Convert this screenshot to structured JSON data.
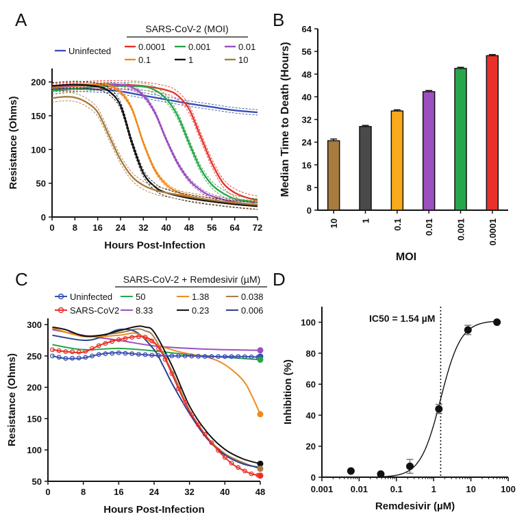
{
  "figure": {
    "panels": {
      "a": "A",
      "b": "B",
      "c": "C",
      "d": "D"
    }
  },
  "chart_data": [
    {
      "id": "A",
      "type": "line",
      "xlabel": "Hours Post-Infection",
      "ylabel": "Resistance (Ohms)",
      "xlim": [
        0,
        72
      ],
      "ylim": [
        0,
        220
      ],
      "xticks": [
        0,
        8,
        16,
        24,
        32,
        40,
        48,
        56,
        64,
        72
      ],
      "yticks": [
        0,
        50,
        100,
        150,
        200
      ],
      "legend_title": "SARS-CoV-2 (MOI)",
      "series": [
        {
          "name": "Uninfected",
          "color": "#3a4fb0",
          "x": [
            0,
            8,
            16,
            24,
            32,
            40,
            48,
            56,
            64,
            72
          ],
          "y": [
            190,
            190,
            189,
            186,
            180,
            174,
            168,
            163,
            158,
            155
          ],
          "band": 4
        },
        {
          "name": "0.0001",
          "color": "#e8312a",
          "x": [
            0,
            8,
            16,
            24,
            32,
            40,
            44,
            48,
            52,
            56,
            60,
            64,
            68,
            72
          ],
          "y": [
            192,
            194,
            196,
            196,
            194,
            188,
            180,
            160,
            120,
            80,
            50,
            36,
            29,
            25
          ],
          "band": 6
        },
        {
          "name": "0.001",
          "color": "#27a64a",
          "x": [
            0,
            8,
            16,
            24,
            32,
            36,
            40,
            44,
            48,
            52,
            56,
            60,
            64,
            68,
            72
          ],
          "y": [
            187,
            190,
            193,
            194,
            193,
            188,
            175,
            150,
            110,
            72,
            48,
            35,
            27,
            24,
            22
          ],
          "band": 5
        },
        {
          "name": "0.01",
          "color": "#9b4fc0",
          "x": [
            0,
            8,
            16,
            24,
            28,
            32,
            36,
            40,
            44,
            48,
            52,
            56,
            64,
            72
          ],
          "y": [
            192,
            195,
            197,
            196,
            192,
            180,
            155,
            115,
            80,
            55,
            40,
            31,
            22,
            18
          ],
          "band": 3
        },
        {
          "name": "0.1",
          "color": "#f08a1c",
          "x": [
            0,
            8,
            16,
            20,
            24,
            28,
            32,
            36,
            40,
            44,
            48,
            56,
            64,
            72
          ],
          "y": [
            193,
            196,
            197,
            195,
            185,
            160,
            110,
            70,
            48,
            37,
            31,
            25,
            21,
            18
          ],
          "band": 3
        },
        {
          "name": "1",
          "color": "#111111",
          "x": [
            0,
            8,
            16,
            20,
            24,
            28,
            32,
            36,
            40,
            48,
            56,
            64,
            72
          ],
          "y": [
            194,
            196,
            193,
            186,
            165,
            110,
            65,
            45,
            36,
            28,
            23,
            19,
            16
          ],
          "band": 5
        },
        {
          "name": "10",
          "color": "#a87b3f",
          "x": [
            0,
            4,
            8,
            12,
            16,
            20,
            24,
            28,
            32,
            36,
            40,
            48,
            56,
            64,
            72
          ],
          "y": [
            176,
            178,
            177,
            170,
            155,
            120,
            85,
            60,
            47,
            40,
            36,
            30,
            25,
            21,
            18
          ],
          "band": 6
        }
      ]
    },
    {
      "id": "B",
      "type": "bar",
      "xlabel": "MOI",
      "ylabel": "Median Time to Death (Hours)",
      "ylim": [
        0,
        64
      ],
      "yticks": [
        0,
        8,
        16,
        24,
        32,
        40,
        48,
        56,
        64
      ],
      "categories": [
        "10",
        "1",
        "0.1",
        "0.01",
        "0.001",
        "0.0001"
      ],
      "values": [
        24.5,
        29.5,
        35.0,
        41.8,
        50.0,
        54.5
      ],
      "errors": [
        0.6,
        0.4,
        0.4,
        0.4,
        0.4,
        0.4
      ],
      "colors": [
        "#a87b3f",
        "#4a4a4a",
        "#f8a91c",
        "#9b4fc0",
        "#27a64a",
        "#e8312a"
      ]
    },
    {
      "id": "C",
      "type": "line",
      "xlabel": "Hours Post-Infection",
      "ylabel": "Resistance (Ohms)",
      "xlim": [
        0,
        48
      ],
      "ylim": [
        50,
        310
      ],
      "xticks": [
        0,
        8,
        16,
        24,
        32,
        40,
        48
      ],
      "yticks": [
        50,
        100,
        150,
        200,
        250,
        300
      ],
      "legend_title": "SARS-CoV-2 + Remdesivir (µM)",
      "series": [
        {
          "name": "Uninfected",
          "color": "#3a4fb0",
          "markers": "circle",
          "x": [
            1,
            4,
            8,
            12,
            16,
            20,
            24,
            28,
            32,
            36,
            40,
            44,
            48
          ],
          "y": [
            250,
            246,
            247,
            253,
            255,
            253,
            251,
            250,
            250,
            249,
            249,
            249,
            248
          ]
        },
        {
          "name": "SARS-CoV2",
          "color": "#e8312a",
          "markers": "circle",
          "x": [
            1,
            4,
            8,
            12,
            16,
            20,
            22,
            24,
            26,
            28,
            30,
            32,
            34,
            36,
            38,
            40,
            42,
            44,
            46,
            48
          ],
          "y": [
            260,
            257,
            256,
            268,
            276,
            281,
            280,
            272,
            252,
            222,
            190,
            162,
            140,
            120,
            103,
            88,
            76,
            68,
            62,
            59
          ]
        },
        {
          "name": "50",
          "color": "#27a64a",
          "x": [
            1,
            8,
            16,
            24,
            32,
            40,
            48
          ],
          "y": [
            268,
            260,
            262,
            258,
            252,
            248,
            244
          ]
        },
        {
          "name": "8.33",
          "color": "#9b4fc0",
          "x": [
            1,
            8,
            16,
            24,
            32,
            40,
            48
          ],
          "y": [
            292,
            283,
            275,
            266,
            262,
            260,
            259
          ]
        },
        {
          "name": "1.38",
          "color": "#f08a1c",
          "x": [
            1,
            8,
            16,
            20,
            24,
            30,
            36,
            40,
            44,
            46,
            48
          ],
          "y": [
            295,
            281,
            283,
            286,
            270,
            256,
            248,
            236,
            212,
            188,
            157
          ]
        },
        {
          "name": "0.23",
          "color": "#111111",
          "x": [
            1,
            4,
            8,
            12,
            16,
            20,
            22,
            24,
            28,
            32,
            36,
            40,
            44,
            48
          ],
          "y": [
            296,
            292,
            282,
            283,
            290,
            297,
            296,
            288,
            235,
            170,
            128,
            101,
            86,
            78
          ]
        },
        {
          "name": "0.038",
          "color": "#a87b3f",
          "x": [
            1,
            8,
            16,
            20,
            22,
            24,
            28,
            32,
            36,
            40,
            44,
            48
          ],
          "y": [
            294,
            282,
            287,
            293,
            290,
            280,
            226,
            163,
            120,
            94,
            80,
            70
          ]
        },
        {
          "name": "0.006",
          "color": "#2a3f8f",
          "x": [
            1,
            8,
            12,
            16,
            20,
            24,
            26,
            28,
            32,
            36,
            40,
            44,
            48
          ],
          "y": [
            283,
            275,
            280,
            292,
            288,
            260,
            235,
            207,
            158,
            118,
            92,
            78,
            72
          ]
        }
      ],
      "end_markers": [
        {
          "name": "8.33",
          "value": 259
        },
        {
          "name": "Uninfected",
          "value": 249
        },
        {
          "name": "50",
          "value": 244
        },
        {
          "name": "1.38",
          "value": 157
        },
        {
          "name": "0.23",
          "value": 78
        },
        {
          "name": "0.038",
          "value": 70
        },
        {
          "name": "SARS-CoV2",
          "value": 59
        }
      ]
    },
    {
      "id": "D",
      "type": "scatter",
      "xlabel": "Remdesivir (µM)",
      "ylabel": "Inhibition (%)",
      "xscale": "log",
      "xlim": [
        0.001,
        100
      ],
      "ylim": [
        0,
        110
      ],
      "xticks": [
        0.001,
        0.01,
        0.1,
        1,
        10,
        100
      ],
      "xtick_labels": [
        "0.001",
        "0.01",
        "0.1",
        "1",
        "10",
        "100"
      ],
      "yticks": [
        0,
        20,
        40,
        60,
        80,
        100
      ],
      "annotation": "IC50 = 1.54 µM",
      "ic50": 1.54,
      "hill": 1.6,
      "top": 101,
      "bottom": 0,
      "points": [
        {
          "x": 0.006,
          "y": 4,
          "err": 0
        },
        {
          "x": 0.038,
          "y": 2,
          "err": 0
        },
        {
          "x": 0.23,
          "y": 7,
          "err": 4.5
        },
        {
          "x": 1.38,
          "y": 44,
          "err": 3
        },
        {
          "x": 8.33,
          "y": 95,
          "err": 3
        },
        {
          "x": 50,
          "y": 100,
          "err": 0
        }
      ]
    }
  ]
}
